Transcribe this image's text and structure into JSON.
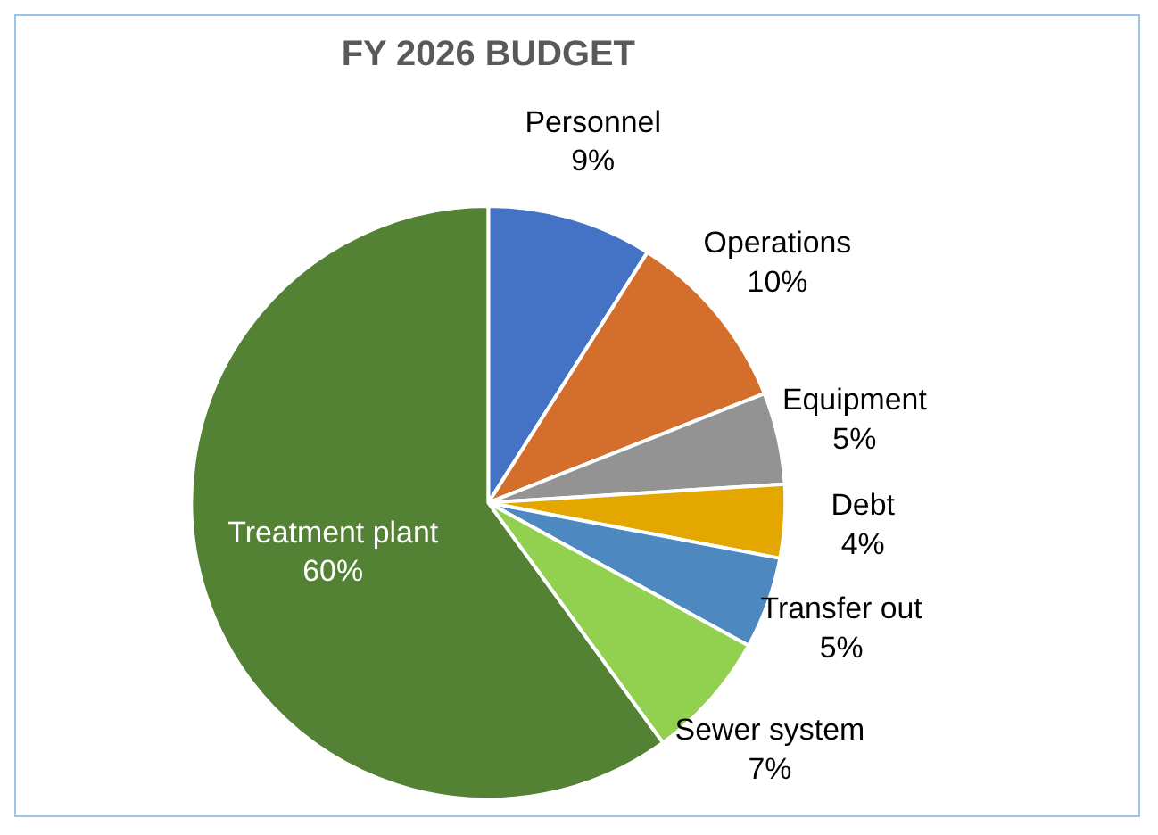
{
  "chart_data": {
    "type": "pie",
    "title": "FY 2026 BUDGET",
    "categories": [
      "Personnel",
      "Operations",
      "Equipment",
      "Debt",
      "Transfer out",
      "Sewer system",
      "Treatment plant"
    ],
    "values": [
      9,
      10,
      5,
      4,
      5,
      7,
      60
    ],
    "value_labels": [
      "9%",
      "10%",
      "5%",
      "4%",
      "5%",
      "7%",
      "60%"
    ],
    "colors": [
      "#4472c4",
      "#d46e2c",
      "#939393",
      "#e3a700",
      "#4e88c0",
      "#92d050",
      "#548235"
    ],
    "legend": false
  }
}
